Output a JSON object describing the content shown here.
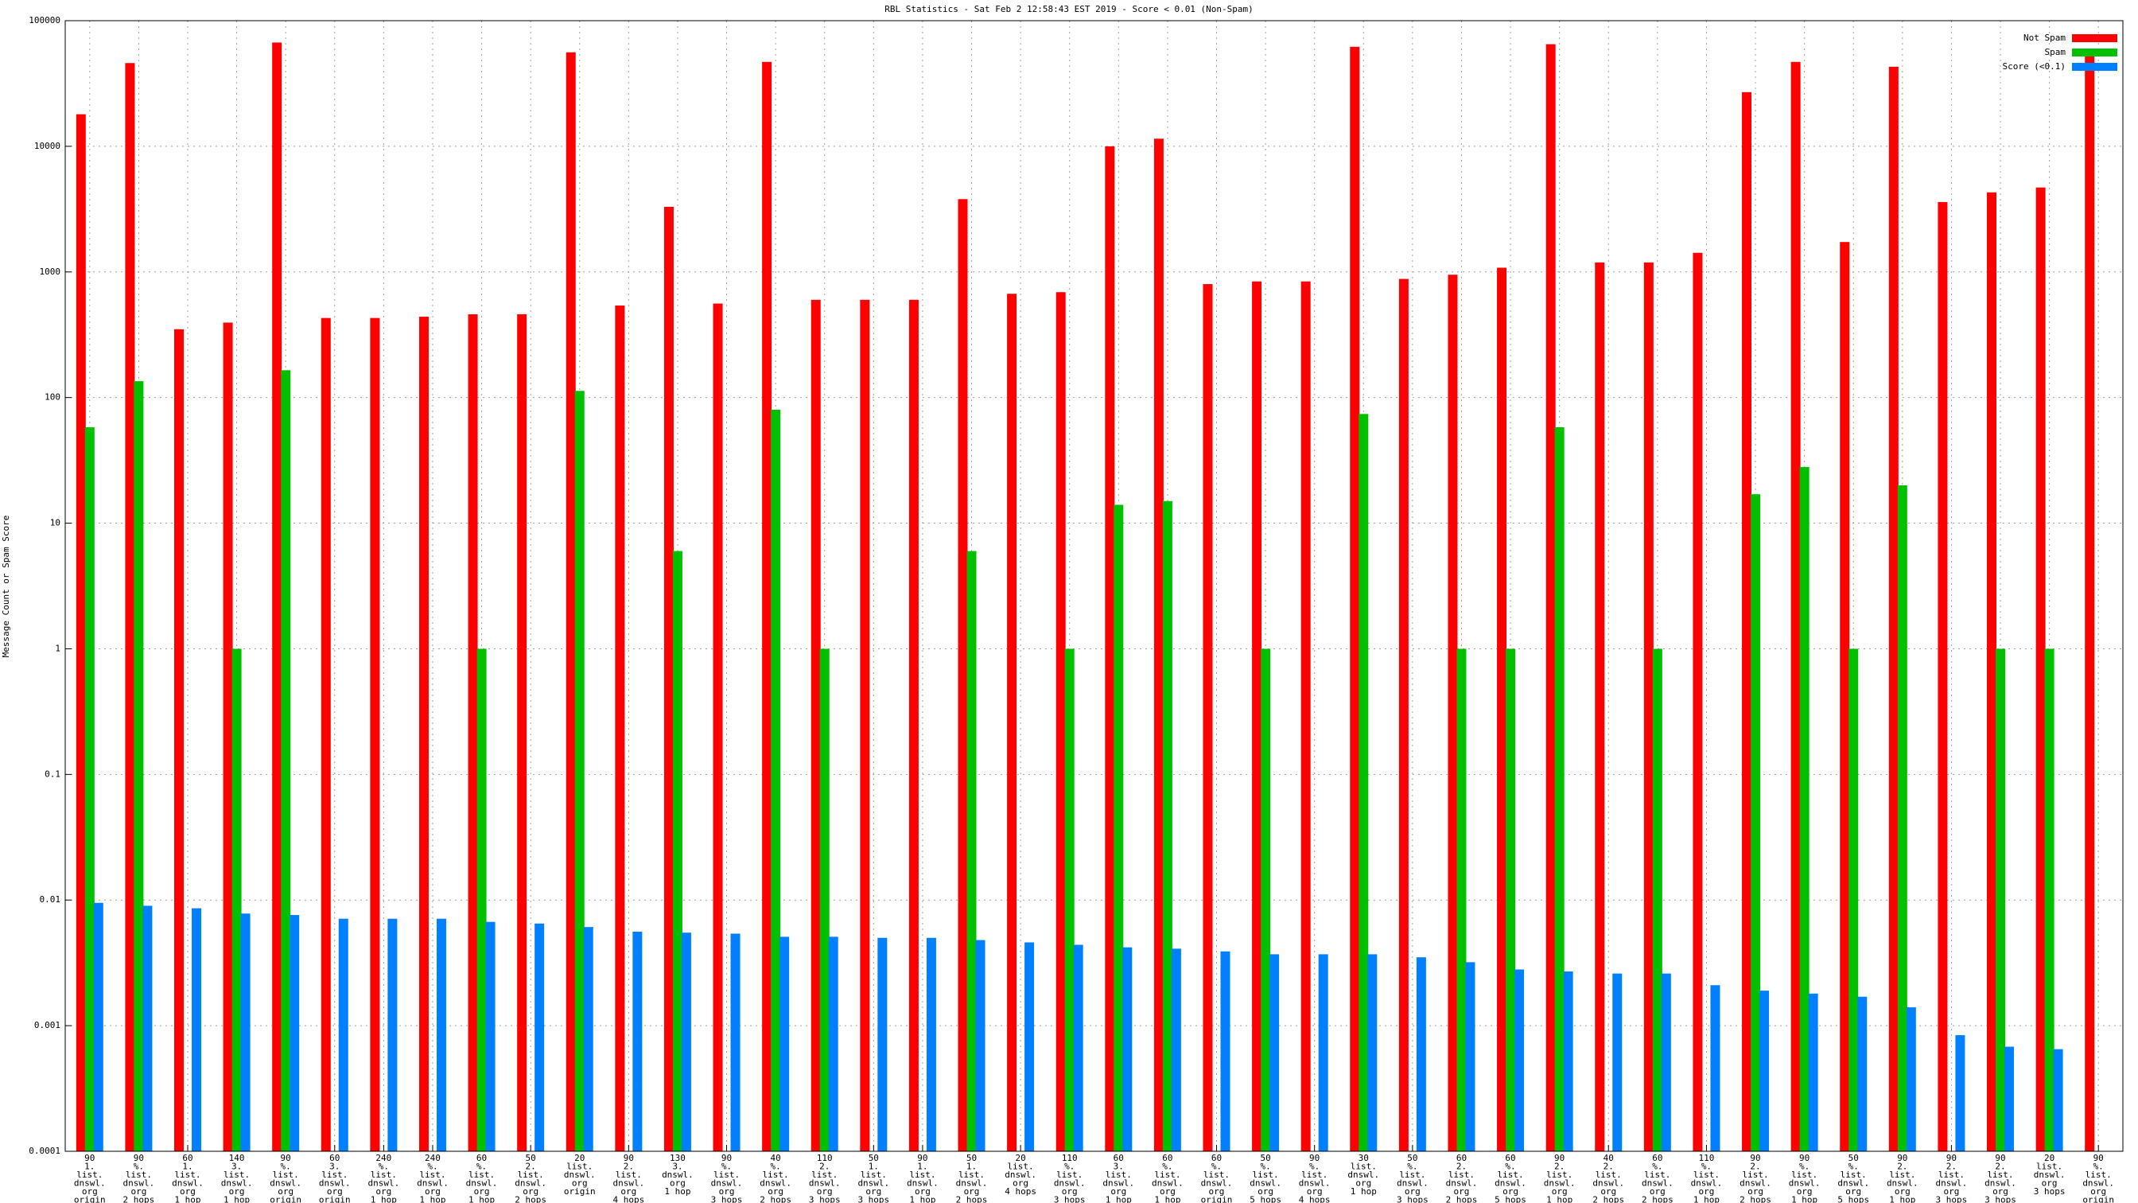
{
  "chart_data": {
    "type": "bar",
    "title": "RBL Statistics - Sat Feb  2 12:58:43 EST 2019 - Score < 0.01 (Non-Spam)",
    "y_label": "Message Count or Spam Score",
    "y_scale": "log",
    "grid": true,
    "legend": "upper right",
    "ylim": [
      0.0001,
      100000
    ],
    "yticks": [
      0.0001,
      0.001,
      0.01,
      0.1,
      1,
      10,
      100,
      1000,
      10000,
      100000
    ],
    "categories": [
      [
        "90",
        "1.",
        "list.",
        "dnswl.",
        "org",
        "origin"
      ],
      [
        "90",
        "%.",
        "list.",
        "dnswl.",
        "org",
        "2 hops"
      ],
      [
        "60",
        "1.",
        "list.",
        "dnswl.",
        "org",
        "1 hop"
      ],
      [
        "140",
        "3.",
        "list.",
        "dnswl.",
        "org",
        "1 hop"
      ],
      [
        "90",
        "%.",
        "list.",
        "dnswl.",
        "org",
        "origin"
      ],
      [
        "60",
        "3.",
        "list.",
        "dnswl.",
        "org",
        "origin"
      ],
      [
        "240",
        "%.",
        "list.",
        "dnswl.",
        "org",
        "1 hop"
      ],
      [
        "240",
        "%.",
        "list.",
        "dnswl.",
        "org",
        "1 hop"
      ],
      [
        "60",
        "%.",
        "list.",
        "dnswl.",
        "org",
        "1 hop"
      ],
      [
        "50",
        "2.",
        "list.",
        "dnswl.",
        "org",
        "2 hops"
      ],
      [
        "20",
        "list.",
        "dnswl.",
        "org",
        "origin"
      ],
      [
        "90",
        "2.",
        "list.",
        "dnswl.",
        "org",
        "4 hops"
      ],
      [
        "130",
        "3.",
        "dnswl.",
        "org",
        "1 hop"
      ],
      [
        "90",
        "%.",
        "list.",
        "dnswl.",
        "org",
        "3 hops"
      ],
      [
        "40",
        "%.",
        "list.",
        "dnswl.",
        "org",
        "2 hops"
      ],
      [
        "110",
        "2.",
        "list.",
        "dnswl.",
        "org",
        "3 hops"
      ],
      [
        "50",
        "1.",
        "list.",
        "dnswl.",
        "org",
        "3 hops"
      ],
      [
        "90",
        "1.",
        "list.",
        "dnswl.",
        "org",
        "1 hop"
      ],
      [
        "50",
        "1.",
        "list.",
        "dnswl.",
        "org",
        "2 hops"
      ],
      [
        "20",
        "list.",
        "dnswl.",
        "org",
        "4 hops"
      ],
      [
        "110",
        "%.",
        "list.",
        "dnswl.",
        "org",
        "3 hops"
      ],
      [
        "60",
        "3.",
        "list.",
        "dnswl.",
        "org",
        "1 hop"
      ],
      [
        "60",
        "%.",
        "list.",
        "dnswl.",
        "org",
        "1 hop"
      ],
      [
        "60",
        "%.",
        "list.",
        "dnswl.",
        "org",
        "origin"
      ],
      [
        "50",
        "%.",
        "list.",
        "dnswl.",
        "org",
        "5 hops"
      ],
      [
        "90",
        "%.",
        "list.",
        "dnswl.",
        "org",
        "4 hops"
      ],
      [
        "30",
        "list.",
        "dnswl.",
        "org",
        "1 hop"
      ],
      [
        "50",
        "%.",
        "list.",
        "dnswl.",
        "org",
        "3 hops"
      ],
      [
        "60",
        "2.",
        "list.",
        "dnswl.",
        "org",
        "2 hops"
      ],
      [
        "60",
        "%.",
        "list.",
        "dnswl.",
        "org",
        "5 hops"
      ],
      [
        "90",
        "2.",
        "list.",
        "dnswl.",
        "org",
        "1 hop"
      ],
      [
        "40",
        "2.",
        "list.",
        "dnswl.",
        "org",
        "2 hops"
      ],
      [
        "60",
        "%.",
        "list.",
        "dnswl.",
        "org",
        "2 hops"
      ],
      [
        "110",
        "%.",
        "list.",
        "dnswl.",
        "org",
        "1 hop"
      ],
      [
        "90",
        "2.",
        "list.",
        "dnswl.",
        "org",
        "2 hops"
      ],
      [
        "90",
        "%.",
        "list.",
        "dnswl.",
        "org",
        "1 hop"
      ],
      [
        "50",
        "%.",
        "list.",
        "dnswl.",
        "org",
        "5 hops"
      ],
      [
        "90",
        "2.",
        "list.",
        "dnswl.",
        "org",
        "1 hop"
      ],
      [
        "90",
        "2.",
        "list.",
        "dnswl.",
        "org",
        "3 hops"
      ],
      [
        "90",
        "2.",
        "list.",
        "dnswl.",
        "org",
        "3 hops"
      ],
      [
        "20",
        "list.",
        "dnswl.",
        "org",
        "3 hops"
      ],
      [
        "90",
        "%.",
        "list.",
        "dnswl.",
        "org",
        "origin"
      ]
    ],
    "series": [
      {
        "name": "Not Spam",
        "color": "#ff0000",
        "values": [
          18000,
          46000,
          350,
          395,
          67000,
          430,
          430,
          440,
          460,
          460,
          56000,
          540,
          3300,
          560,
          47000,
          600,
          600,
          600,
          3800,
          670,
          690,
          10000,
          11500,
          800,
          840,
          840,
          62000,
          880,
          950,
          1080,
          65000,
          1190,
          1190,
          1420,
          27000,
          47000,
          1730,
          43000,
          3600,
          4300,
          4700,
          60000
        ]
      },
      {
        "name": "Spam",
        "color": "#00c000",
        "values": [
          58,
          135,
          null,
          1,
          165,
          null,
          null,
          null,
          1,
          null,
          113,
          null,
          6,
          null,
          80,
          1,
          null,
          null,
          6,
          null,
          1,
          14,
          15,
          null,
          1,
          null,
          74,
          null,
          1,
          1,
          58,
          null,
          1,
          null,
          17,
          28,
          1,
          20,
          null,
          1,
          1,
          null
        ]
      },
      {
        "name": "Score (<0.1)",
        "color": "#0080ff",
        "values": [
          0.0095,
          0.009,
          0.0086,
          0.0078,
          0.0076,
          0.0071,
          0.0071,
          0.0071,
          0.0067,
          0.0065,
          0.0061,
          0.0056,
          0.0055,
          0.0054,
          0.0051,
          0.0051,
          0.005,
          0.005,
          0.0048,
          0.0046,
          0.0044,
          0.0042,
          0.0041,
          0.0039,
          0.0037,
          0.0037,
          0.0037,
          0.0035,
          0.0032,
          0.0028,
          0.0027,
          0.0026,
          0.0026,
          0.0021,
          0.0019,
          0.0018,
          0.0017,
          0.0014,
          0.00084,
          0.00068,
          0.00065,
          null
        ]
      }
    ]
  }
}
